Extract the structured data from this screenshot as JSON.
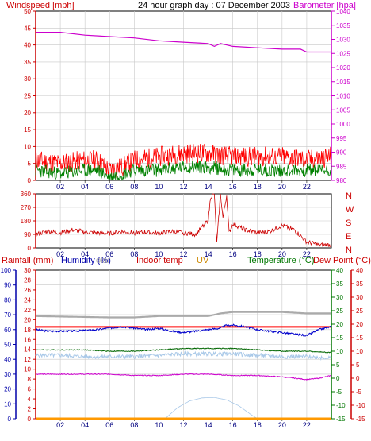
{
  "colors": {
    "wind_axis": "#cc0000",
    "baro_axis": "#cc00cc",
    "wind_gust": "#ff0000",
    "wind_avg": "#008000",
    "baro_line": "#cc00cc",
    "dir_line": "#cc0000",
    "dir_axis": "#cc0000",
    "rain_axis": "#cc0000",
    "hum_axis": "#0000aa",
    "temp_axis": "#007700",
    "dew_axis": "#cc0000",
    "uv_title": "#cc8800",
    "indoor_title": "#cc0000",
    "solar_title": "#aaaaaa",
    "indoor_temp": "#ff0000",
    "humidity": "#0000cc",
    "solar": "#aaaaaa",
    "temperature": "#006600",
    "dew_point_light": "#a8c8e8",
    "dew_point_magenta": "#cc00cc",
    "uv_line": "#ff9900",
    "uv_arc": "#a8c8e8",
    "grid": "#c8c8c8",
    "xtick": "#000080"
  },
  "labels": {
    "wind_title": "Windspeed [mph]",
    "header": "24 hour graph day : 07 December 2003",
    "baro_title": "Barometer [hpa]",
    "compass": [
      "N",
      "W",
      "S",
      "E",
      "N"
    ],
    "rain_title": "Rainfall (mm)",
    "hum_title": "Humidity (%)",
    "solar_title": "olar",
    "indoor_title": "Indoor temp",
    "uv_title": "UV",
    "temp_title": "Temperature (°C)",
    "dew_title": "Dew Point (°C)"
  },
  "chart_data": [
    {
      "type": "line",
      "title": "24 hour graph day : 07 December 2003",
      "x_ticks": [
        "02",
        "04",
        "06",
        "08",
        "10",
        "12",
        "14",
        "16",
        "18",
        "20",
        "22"
      ],
      "xlim": [
        0,
        24
      ],
      "grid": true,
      "axes": {
        "left": {
          "label": "Windspeed [mph]",
          "ticks": [
            0,
            5,
            10,
            15,
            20,
            25,
            30,
            35,
            40,
            45,
            50
          ],
          "range": [
            0,
            50
          ]
        },
        "right": {
          "label": "Barometer [hpa]",
          "ticks": [
            980,
            985,
            990,
            995,
            1000,
            1005,
            1010,
            1015,
            1020,
            1025,
            1030,
            1035,
            1040
          ],
          "range": [
            980,
            1040
          ]
        }
      },
      "series": [
        {
          "name": "Windspeed [mph]",
          "style": "gust",
          "axis": "left",
          "x": [
            0,
            2,
            4,
            5,
            6,
            7,
            8,
            10,
            12,
            14,
            16,
            18,
            20,
            22,
            24
          ],
          "values": [
            6,
            5,
            6,
            6,
            3,
            4,
            6,
            7,
            8,
            8,
            7,
            7,
            7,
            6,
            7
          ]
        },
        {
          "name": "",
          "style": "average",
          "axis": "left",
          "x": [
            0,
            2,
            4,
            5,
            6,
            7,
            8,
            10,
            12,
            14,
            16,
            18,
            20,
            22,
            24
          ],
          "values": [
            3,
            2,
            3,
            3,
            1,
            2,
            3,
            3,
            4,
            4,
            3,
            3,
            3,
            3,
            3
          ]
        },
        {
          "name": "Barometer [hpa]",
          "axis": "right",
          "x": [
            0,
            2,
            4,
            6,
            8,
            10,
            12,
            14,
            14.5,
            15,
            16,
            18,
            20,
            21.5,
            22,
            24
          ],
          "values": [
            1032.5,
            1032.5,
            1031.5,
            1031,
            1030.5,
            1029.5,
            1029,
            1028.5,
            1027.5,
            1028.5,
            1027.5,
            1027,
            1026.5,
            1026.5,
            1025.5,
            1025.5
          ]
        }
      ]
    },
    {
      "type": "line",
      "title": "",
      "x_ticks": [
        "02",
        "04",
        "06",
        "08",
        "10",
        "12",
        "14",
        "16",
        "18",
        "20",
        "22"
      ],
      "xlim": [
        0,
        24
      ],
      "grid": true,
      "axes": {
        "left": {
          "label": "",
          "ticks": [
            0,
            90,
            180,
            270,
            360
          ],
          "range": [
            0,
            360
          ]
        },
        "right": {
          "label": "",
          "ticks": [
            "N",
            "W",
            "S",
            "E",
            "N"
          ]
        }
      },
      "series": [
        {
          "name": "",
          "axis": "left",
          "x": [
            0,
            1,
            2,
            3,
            4,
            5,
            6,
            7,
            8,
            9,
            10,
            11,
            12,
            13,
            13.5,
            14,
            14.2,
            14.5,
            14.7,
            15,
            15.2,
            15.5,
            15.7,
            16,
            17,
            18,
            19,
            20,
            21,
            22,
            23,
            24
          ],
          "values": [
            90,
            110,
            100,
            120,
            105,
            100,
            95,
            110,
            100,
            105,
            95,
            110,
            100,
            90,
            140,
            180,
            340,
            360,
            30,
            360,
            200,
            350,
            100,
            160,
            120,
            100,
            110,
            150,
            120,
            40,
            20,
            20
          ]
        }
      ]
    },
    {
      "type": "line",
      "title": "",
      "x_ticks": [
        "02",
        "04",
        "06",
        "08",
        "10",
        "12",
        "14",
        "16",
        "18",
        "20",
        "22"
      ],
      "xlim": [
        0,
        24
      ],
      "grid": true,
      "axes": {
        "rain": {
          "label": "Rainfall (mm)",
          "ticks": [
            0,
            2,
            4,
            6,
            8,
            10,
            12,
            14,
            16,
            18,
            20,
            22,
            24,
            26,
            28,
            30
          ],
          "range": [
            0,
            30
          ]
        },
        "humidity": {
          "label": "Humidity (%)",
          "ticks": [
            0,
            10,
            20,
            30,
            40,
            50,
            60,
            70,
            80,
            90,
            100
          ],
          "range": [
            0,
            100
          ]
        },
        "temperature": {
          "label": "Temperature (°C)",
          "ticks": [
            -15,
            -10,
            -5,
            0,
            5,
            10,
            15,
            20,
            25,
            30,
            35,
            40
          ],
          "range": [
            -15,
            40
          ]
        },
        "dew_point": {
          "label": "Dew Point (°C)",
          "ticks": [
            -15,
            -10,
            -5,
            0,
            5,
            10,
            15,
            20,
            25,
            30,
            35,
            40
          ],
          "range": [
            -15,
            40
          ]
        }
      },
      "series": [
        {
          "name": "Indoor temp",
          "axis": "temperature",
          "x": [
            0,
            24
          ],
          "values": [
            19,
            19
          ]
        },
        {
          "name": "Humidity (%)",
          "axis": "humidity",
          "x": [
            0,
            1,
            3,
            5,
            6,
            7,
            8,
            9,
            10,
            11,
            12,
            13,
            14,
            15,
            15.5,
            16,
            17,
            18,
            19,
            20,
            21,
            22,
            23,
            24
          ],
          "values": [
            60,
            59,
            59,
            60,
            61,
            62,
            61,
            60,
            61,
            59,
            58,
            59,
            60,
            61,
            63,
            63,
            62,
            60,
            59,
            58,
            57,
            56,
            60,
            62
          ]
        },
        {
          "name": "olar",
          "axis": "temperature",
          "x": [
            0,
            6,
            8,
            10,
            12,
            14,
            15,
            16,
            18,
            20,
            22,
            24
          ],
          "values": [
            23,
            22.5,
            22.5,
            23,
            23,
            23,
            24,
            24.5,
            24.5,
            24.5,
            24,
            24
          ]
        },
        {
          "name": "Temperature (°C)",
          "axis": "temperature",
          "x": [
            0,
            2,
            4,
            6,
            8,
            10,
            12,
            14,
            16,
            18,
            20,
            22,
            24
          ],
          "values": [
            10.5,
            10.5,
            10.5,
            10,
            10,
            10.5,
            11,
            11,
            11,
            10.5,
            10,
            10,
            9.5
          ]
        },
        {
          "name": "Dew Point (°C)",
          "axis": "dew_point",
          "x": [
            0,
            2,
            4,
            6,
            8,
            10,
            12,
            14,
            16,
            18,
            20,
            22,
            24
          ],
          "values": [
            8.5,
            8.5,
            8,
            8,
            8,
            8.5,
            9,
            9,
            9,
            8.5,
            8,
            8,
            7.5
          ]
        },
        {
          "name": "",
          "axis": "temperature",
          "x": [
            0,
            4,
            6,
            8,
            10,
            12,
            14,
            16,
            18,
            20,
            21,
            22,
            23,
            24
          ],
          "values": [
            1.5,
            1.5,
            1.5,
            1,
            1,
            1.5,
            1.5,
            1,
            1,
            0.5,
            0,
            -0.5,
            0,
            1
          ]
        },
        {
          "name": "UV",
          "axis": "rain",
          "x": [
            0,
            24
          ],
          "values": [
            0,
            0
          ]
        },
        {
          "name": "",
          "axis": "rain",
          "x": [
            10.5,
            11.5,
            12.5,
            13.5,
            14.5,
            15.5,
            16.5,
            17.5,
            18
          ],
          "values": [
            0,
            2.2,
            3.6,
            4.2,
            4.3,
            3.8,
            2.6,
            0.8,
            0
          ]
        }
      ]
    }
  ]
}
